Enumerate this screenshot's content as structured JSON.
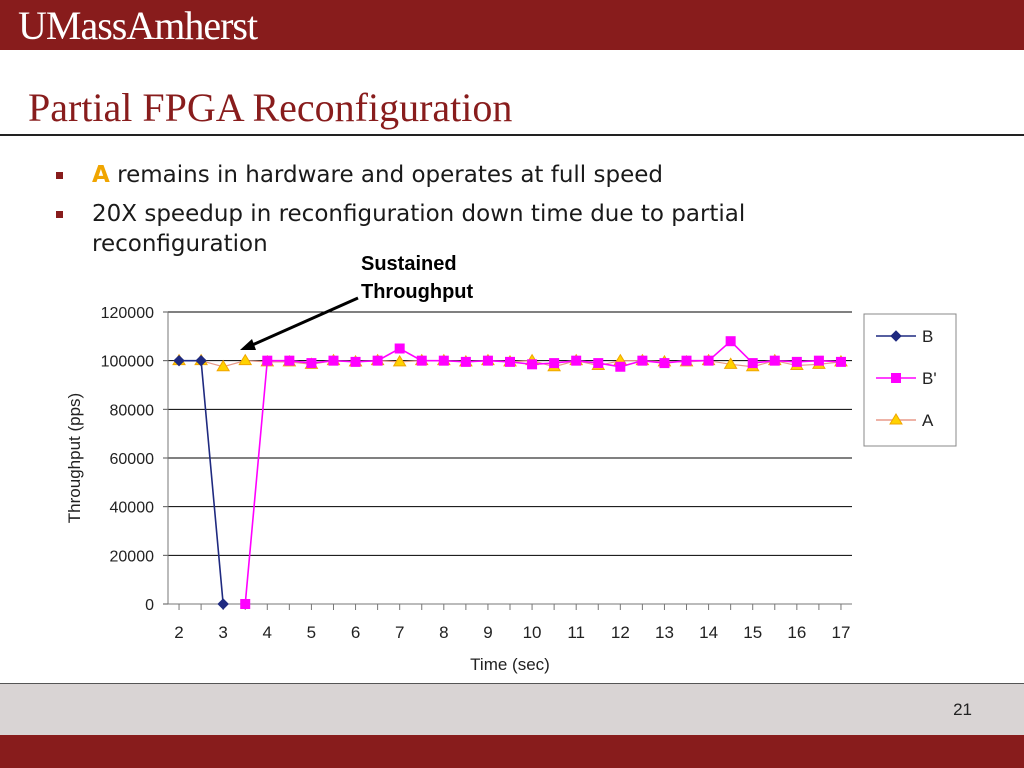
{
  "header": {
    "logo_text": "UMassAmherst"
  },
  "slide": {
    "title": "Partial FPGA Reconfiguration",
    "bullets": [
      {
        "highlight": "A",
        "text": " remains in hardware and operates at full speed"
      },
      {
        "highlight": "",
        "text": "20X speedup in reconfiguration down time due to partial reconfiguration"
      }
    ],
    "annotation": "Sustained\nThroughput",
    "page_number": "21"
  },
  "colors": {
    "brand": "#881c1c",
    "accent": "#f0a500",
    "footer": "#d9d4d4"
  },
  "chart_data": {
    "type": "line",
    "title": "",
    "xlabel": "Time (sec)",
    "ylabel": "Throughput (pps)",
    "ylim": [
      0,
      120000
    ],
    "yticks": [
      0,
      20000,
      40000,
      60000,
      80000,
      100000,
      120000
    ],
    "xlim": [
      1.75,
      17.25
    ],
    "xticks": [
      2,
      3,
      4,
      5,
      6,
      7,
      8,
      9,
      10,
      11,
      12,
      13,
      14,
      15,
      16,
      17
    ],
    "grid": true,
    "legend": "right",
    "series": [
      {
        "name": "B",
        "color": "#1f2a80",
        "marker": "diamond",
        "x": [
          2,
          2.5,
          3
        ],
        "y": [
          100000,
          100000,
          0
        ]
      },
      {
        "name": "B'",
        "color": "#ff00ff",
        "marker": "square",
        "x": [
          3.5,
          4,
          4.5,
          5,
          5.5,
          6,
          6.5,
          7,
          7.5,
          8,
          8.5,
          9,
          9.5,
          10,
          10.5,
          11,
          11.5,
          12,
          12.5,
          13,
          13.5,
          14,
          14.5,
          15,
          15.5,
          16,
          16.5,
          17
        ],
        "y": [
          0,
          100000,
          100000,
          99000,
          100000,
          99500,
          100000,
          105000,
          100000,
          100000,
          99500,
          100000,
          99500,
          98500,
          99000,
          100000,
          99000,
          97500,
          100000,
          99000,
          100000,
          100000,
          108000,
          99000,
          100000,
          99500,
          100000,
          99500
        ]
      },
      {
        "name": "A",
        "color": "#e89a8a",
        "marker": "triangle",
        "markerFill": "#ffd200",
        "markerStroke": "#f0a500",
        "x": [
          2,
          2.5,
          3,
          3.5,
          4,
          4.5,
          5,
          5.5,
          6,
          6.5,
          7,
          7.5,
          8,
          8.5,
          9,
          9.5,
          10,
          10.5,
          11,
          11.5,
          12,
          12.5,
          13,
          13.5,
          14,
          14.5,
          15,
          15.5,
          16,
          16.5,
          17
        ],
        "y": [
          100000,
          100000,
          97500,
          100000,
          99500,
          99500,
          98500,
          100000,
          99500,
          100000,
          99500,
          100000,
          100000,
          99500,
          100000,
          99500,
          100000,
          97500,
          100000,
          98000,
          100000,
          100000,
          99500,
          99500,
          100000,
          98500,
          97500,
          100000,
          98000,
          98500,
          99500
        ]
      }
    ]
  }
}
